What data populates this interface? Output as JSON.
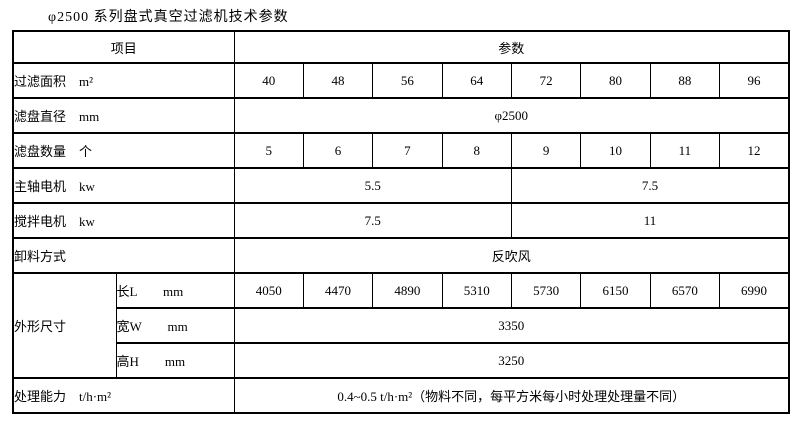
{
  "title": "φ2500 系列盘式真空过滤机技术参数",
  "table": {
    "header": {
      "item": "项目",
      "params": "参数"
    },
    "rows": {
      "filter_area": {
        "label": "过滤面积　m²",
        "values": [
          "40",
          "48",
          "56",
          "64",
          "72",
          "80",
          "88",
          "96"
        ]
      },
      "disc_diameter": {
        "label": "滤盘直径　mm",
        "value": "φ2500"
      },
      "disc_count": {
        "label": "滤盘数量　个",
        "values": [
          "5",
          "6",
          "7",
          "8",
          "9",
          "10",
          "11",
          "12"
        ]
      },
      "main_motor": {
        "label": "主轴电机　kw",
        "left": "5.5",
        "right": "7.5"
      },
      "agitator_motor": {
        "label": "搅拌电机　kw",
        "left": "7.5",
        "right": "11"
      },
      "discharge": {
        "label": "卸料方式",
        "value": "反吹风"
      },
      "dimensions": {
        "label": "外形尺寸",
        "length": {
          "label": "长L　　mm",
          "values": [
            "4050",
            "4470",
            "4890",
            "5310",
            "5730",
            "6150",
            "6570",
            "6990"
          ]
        },
        "width": {
          "label": "宽W　　mm",
          "value": "3350"
        },
        "height": {
          "label": "高H　　mm",
          "value": "3250"
        }
      },
      "capacity": {
        "label": "处理能力　t/h·m²",
        "value": "0.4~0.5 t/h·m²（物料不同，每平方米每小时处理处理量不同）"
      }
    }
  }
}
